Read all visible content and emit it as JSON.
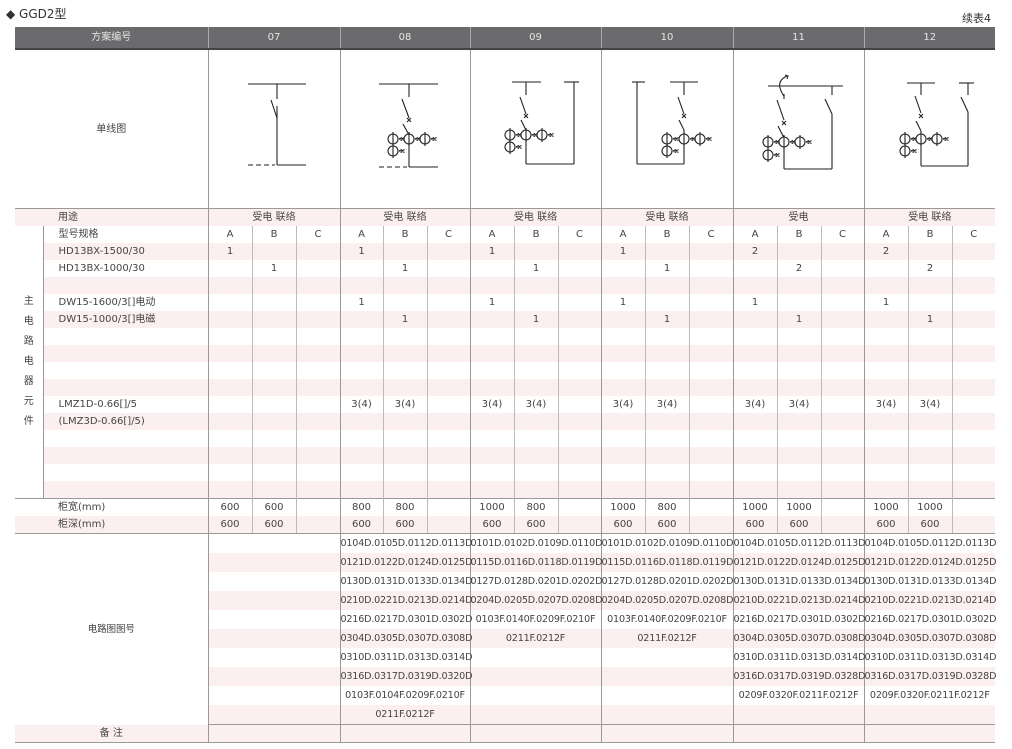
{
  "title": "◆ GGD2型",
  "continued": "续表4",
  "header": {
    "label": "方案编号",
    "schemes": [
      "07",
      "08",
      "09",
      "10",
      "11",
      "12"
    ]
  },
  "diagram_label": "单线图",
  "purpose": {
    "label": "用途",
    "values": [
      "受电 联络",
      "受电 联络",
      "受电 联络",
      "受电 联络",
      "受电",
      "受电 联络"
    ]
  },
  "components": {
    "group_label": [
      "主",
      "电",
      "路",
      "电",
      "器",
      "元",
      "件"
    ],
    "rows": [
      {
        "label": "型号规格",
        "values": [
          [
            "A",
            "B",
            "C"
          ],
          [
            "A",
            "B",
            "C"
          ],
          [
            "A",
            "B",
            "C"
          ],
          [
            "A",
            "B",
            "C"
          ],
          [
            "A",
            "B",
            "C"
          ],
          [
            "A",
            "B",
            "C"
          ]
        ]
      },
      {
        "label": "HD13BX-1500/30",
        "values": [
          [
            "1",
            "",
            ""
          ],
          [
            "1",
            "",
            ""
          ],
          [
            "1",
            "",
            ""
          ],
          [
            "1",
            "",
            ""
          ],
          [
            "2",
            "",
            ""
          ],
          [
            "2",
            "",
            ""
          ]
        ]
      },
      {
        "label": "HD13BX-1000/30",
        "values": [
          [
            "",
            "1",
            ""
          ],
          [
            "",
            "1",
            ""
          ],
          [
            "",
            "1",
            ""
          ],
          [
            "",
            "1",
            ""
          ],
          [
            "",
            "2",
            ""
          ],
          [
            "",
            "2",
            ""
          ]
        ]
      },
      {
        "label": "",
        "values": [
          [
            "",
            "",
            ""
          ],
          [
            "",
            "",
            ""
          ],
          [
            "",
            "",
            ""
          ],
          [
            "",
            "",
            ""
          ],
          [
            "",
            "",
            ""
          ],
          [
            "",
            "",
            ""
          ]
        ]
      },
      {
        "label": "DW15-1600/3[]电动",
        "values": [
          [
            "",
            "",
            ""
          ],
          [
            "1",
            "",
            ""
          ],
          [
            "1",
            "",
            ""
          ],
          [
            "1",
            "",
            ""
          ],
          [
            "1",
            "",
            ""
          ],
          [
            "1",
            "",
            ""
          ]
        ]
      },
      {
        "label": "DW15-1000/3[]电磁",
        "values": [
          [
            "",
            "",
            ""
          ],
          [
            "",
            "1",
            ""
          ],
          [
            "",
            "1",
            ""
          ],
          [
            "",
            "1",
            ""
          ],
          [
            "",
            "1",
            ""
          ],
          [
            "",
            "1",
            ""
          ]
        ]
      },
      {
        "label": "",
        "values": [
          [
            "",
            "",
            ""
          ],
          [
            "",
            "",
            ""
          ],
          [
            "",
            "",
            ""
          ],
          [
            "",
            "",
            ""
          ],
          [
            "",
            "",
            ""
          ],
          [
            "",
            "",
            ""
          ]
        ]
      },
      {
        "label": "",
        "values": [
          [
            "",
            "",
            ""
          ],
          [
            "",
            "",
            ""
          ],
          [
            "",
            "",
            ""
          ],
          [
            "",
            "",
            ""
          ],
          [
            "",
            "",
            ""
          ],
          [
            "",
            "",
            ""
          ]
        ]
      },
      {
        "label": "",
        "values": [
          [
            "",
            "",
            ""
          ],
          [
            "",
            "",
            ""
          ],
          [
            "",
            "",
            ""
          ],
          [
            "",
            "",
            ""
          ],
          [
            "",
            "",
            ""
          ],
          [
            "",
            "",
            ""
          ]
        ]
      },
      {
        "label": "",
        "values": [
          [
            "",
            "",
            ""
          ],
          [
            "",
            "",
            ""
          ],
          [
            "",
            "",
            ""
          ],
          [
            "",
            "",
            ""
          ],
          [
            "",
            "",
            ""
          ],
          [
            "",
            "",
            ""
          ]
        ]
      },
      {
        "label": "LMZ1D-0.66[]/5",
        "values": [
          [
            "",
            "",
            ""
          ],
          [
            "3(4)",
            "3(4)",
            ""
          ],
          [
            "3(4)",
            "3(4)",
            ""
          ],
          [
            "3(4)",
            "3(4)",
            ""
          ],
          [
            "3(4)",
            "3(4)",
            ""
          ],
          [
            "3(4)",
            "3(4)",
            ""
          ]
        ]
      },
      {
        "label": "(LMZ3D-0.66[]/5)",
        "values": [
          [
            "",
            "",
            ""
          ],
          [
            "",
            "",
            ""
          ],
          [
            "",
            "",
            ""
          ],
          [
            "",
            "",
            ""
          ],
          [
            "",
            "",
            ""
          ],
          [
            "",
            "",
            ""
          ]
        ]
      },
      {
        "label": "",
        "values": [
          [
            "",
            "",
            ""
          ],
          [
            "",
            "",
            ""
          ],
          [
            "",
            "",
            ""
          ],
          [
            "",
            "",
            ""
          ],
          [
            "",
            "",
            ""
          ],
          [
            "",
            "",
            ""
          ]
        ]
      },
      {
        "label": "",
        "values": [
          [
            "",
            "",
            ""
          ],
          [
            "",
            "",
            ""
          ],
          [
            "",
            "",
            ""
          ],
          [
            "",
            "",
            ""
          ],
          [
            "",
            "",
            ""
          ],
          [
            "",
            "",
            ""
          ]
        ]
      },
      {
        "label": "",
        "values": [
          [
            "",
            "",
            ""
          ],
          [
            "",
            "",
            ""
          ],
          [
            "",
            "",
            ""
          ],
          [
            "",
            "",
            ""
          ],
          [
            "",
            "",
            ""
          ],
          [
            "",
            "",
            ""
          ]
        ]
      },
      {
        "label": "",
        "values": [
          [
            "",
            "",
            ""
          ],
          [
            "",
            "",
            ""
          ],
          [
            "",
            "",
            ""
          ],
          [
            "",
            "",
            ""
          ],
          [
            "",
            "",
            ""
          ],
          [
            "",
            "",
            ""
          ]
        ]
      }
    ]
  },
  "dimensions": [
    {
      "label": "柜宽(mm)",
      "values": [
        [
          "600",
          "600",
          ""
        ],
        [
          "800",
          "800",
          ""
        ],
        [
          "1000",
          "800",
          ""
        ],
        [
          "1000",
          "800",
          ""
        ],
        [
          "1000",
          "1000",
          ""
        ],
        [
          "1000",
          "1000",
          ""
        ]
      ]
    },
    {
      "label": "柜深(mm)",
      "values": [
        [
          "600",
          "600",
          ""
        ],
        [
          "600",
          "600",
          ""
        ],
        [
          "600",
          "600",
          ""
        ],
        [
          "600",
          "600",
          ""
        ],
        [
          "600",
          "600",
          ""
        ],
        [
          "600",
          "600",
          ""
        ]
      ]
    }
  ],
  "circuit": {
    "label": "电路图图号",
    "codes": [
      [],
      [
        "0104D.0105D.0112D.0113D",
        "0121D.0122D.0124D.0125D",
        "0130D.0131D.0133D.0134D",
        "0210D.0221D.0213D.0214D",
        "0216D.0217D.0301D.0302D",
        "0304D.0305D.0307D.0308D",
        "0310D.0311D.0313D.0314D",
        "0316D.0317D.0319D.0320D",
        "0103F.0104F.0209F.0210F",
        "0211F.0212F"
      ],
      [
        "0101D.0102D.0109D.0110D",
        "0115D.0116D.0118D.0119D",
        "0127D.0128D.0201D.0202D",
        "0204D.0205D.0207D.0208D",
        "0103F.0140F.0209F.0210F",
        "0211F.0212F"
      ],
      [
        "0101D.0102D.0109D.0110D",
        "0115D.0116D.0118D.0119D",
        "0127D.0128D.0201D.0202D",
        "0204D.0205D.0207D.0208D",
        "0103F.0140F.0209F.0210F",
        "0211F.0212F"
      ],
      [
        "0104D.0105D.0112D.0113D",
        "0121D.0122D.0124D.0125D",
        "0130D.0131D.0133D.0134D",
        "0210D.0221D.0213D.0214D",
        "0216D.0217D.0301D.0302D",
        "0304D.0305D.0307D.0308D",
        "0310D.0311D.0313D.0314D",
        "0316D.0317D.0319D.0328D",
        "0209F.0320F.0211F.0212F"
      ],
      [
        "0104D.0105D.0112D.0113D",
        "0121D.0122D.0124D.0125D",
        "0130D.0131D.0133D.0134D",
        "0210D.0221D.0213D.0214D",
        "0216D.0217D.0301D.0302D",
        "0304D.0305D.0307D.0308D",
        "0310D.0311D.0313D.0314D",
        "0316D.0317D.0319D.0328D",
        "0209F.0320F.0211F.0212F"
      ]
    ]
  },
  "remarks": {
    "label": "备 注"
  },
  "colors": {
    "header_bg": "#6b6b6e",
    "stripe": "#fcefef",
    "grid": "#999999"
  }
}
